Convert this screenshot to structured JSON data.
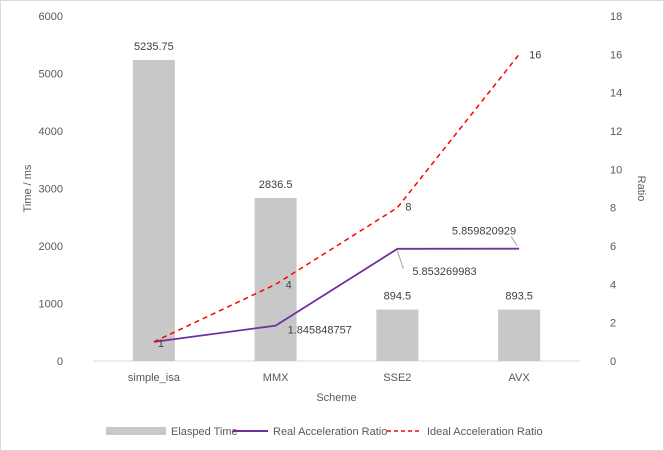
{
  "chart_data": {
    "type": "bar",
    "categories": [
      "simple_isa",
      "MMX",
      "SSE2",
      "AVX"
    ],
    "xlabel": "Scheme",
    "ylabel": "Time / ms",
    "y2label": "Ratio",
    "ylim": [
      0,
      6000
    ],
    "yticks": [
      0,
      1000,
      2000,
      3000,
      4000,
      5000,
      6000
    ],
    "y2lim": [
      0,
      18
    ],
    "y2ticks": [
      0,
      2,
      4,
      6,
      8,
      10,
      12,
      14,
      16,
      18
    ],
    "grid": false,
    "legend_position": "bottom",
    "series": [
      {
        "name": "Elasped Time",
        "kind": "bar",
        "axis": "left",
        "color": "#c8c8c8",
        "values": [
          5235.75,
          2836.5,
          894.5,
          893.5
        ],
        "labels": [
          "5235.75",
          "2836.5",
          "894.5",
          "893.5"
        ]
      },
      {
        "name": "Real Acceleration Ratio",
        "kind": "line",
        "axis": "right",
        "color": "#7030a0",
        "values": [
          1,
          1.845848757,
          5.853269983,
          5.859820929
        ],
        "labels": [
          "",
          "1.845848757",
          "5.853269983",
          "5.859820929"
        ]
      },
      {
        "name": "Ideal Acceleration Ratio",
        "kind": "line-dashed",
        "axis": "right",
        "color": "#ff0000",
        "values": [
          1,
          4,
          8,
          16
        ],
        "labels": [
          "1",
          "4",
          "8",
          "16"
        ]
      }
    ]
  }
}
